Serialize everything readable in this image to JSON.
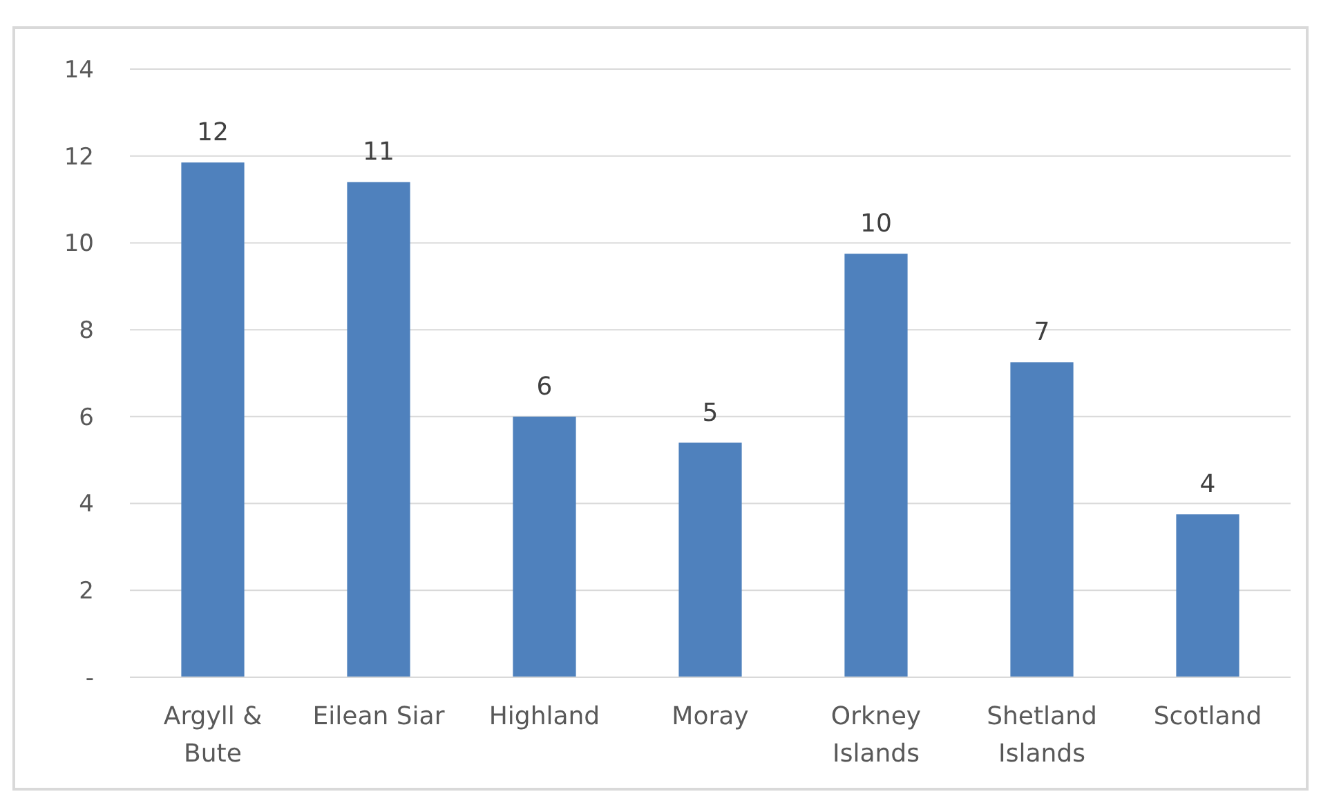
{
  "chart_data": {
    "type": "bar",
    "categories": [
      "Argyll & Bute",
      "Eilean Siar",
      "Highland",
      "Moray",
      "Orkney Islands",
      "Shetland Islands",
      "Scotland"
    ],
    "values": [
      11.85,
      11.4,
      6.0,
      5.4,
      9.75,
      7.25,
      3.75
    ],
    "value_labels": [
      "12",
      "11",
      "6",
      "5",
      "10",
      "7",
      "4"
    ],
    "color": "#4f81bd",
    "ylim": [
      0,
      14
    ],
    "yticks": [
      {
        "value": 0,
        "label": "-"
      },
      2,
      4,
      6,
      8,
      10,
      12,
      14
    ],
    "grid": "y"
  }
}
